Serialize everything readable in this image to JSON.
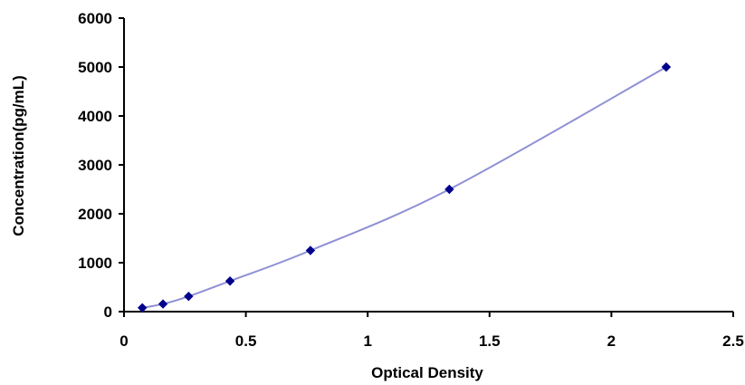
{
  "chart_data": {
    "type": "scatter",
    "title": "",
    "xlabel": "Optical Density",
    "ylabel": "Concentration(pg/mL)",
    "xlim": [
      0,
      2.5
    ],
    "ylim": [
      0,
      6000
    ],
    "x_ticks": [
      0,
      0.5,
      1,
      1.5,
      2,
      2.5
    ],
    "x_tick_labels": [
      "0",
      "0.5",
      "1",
      "1.5",
      "2",
      "2.5"
    ],
    "y_ticks": [
      0,
      1000,
      2000,
      3000,
      4000,
      5000,
      6000
    ],
    "y_tick_labels": [
      "0",
      "1000",
      "2000",
      "3000",
      "4000",
      "5000",
      "6000"
    ],
    "grid": false,
    "legend": "none",
    "series": [
      {
        "x": [
          0.075,
          0.16,
          0.265,
          0.435,
          0.765,
          1.335,
          2.225
        ],
        "y": [
          78,
          156,
          312,
          625,
          1250,
          2500,
          5000
        ],
        "marker_color": "#00008b",
        "line_color": "#8f8fd6",
        "trendline": "smooth"
      }
    ]
  }
}
